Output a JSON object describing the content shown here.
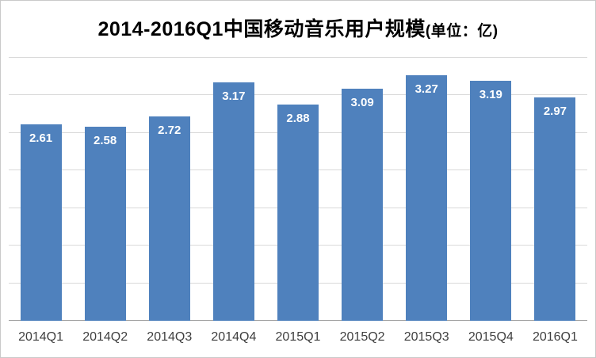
{
  "title": {
    "main": "2014-2016Q1中国移动音乐用户规模",
    "unit": "(单位：亿)"
  },
  "chart_data": {
    "type": "bar",
    "title": "2014-2016Q1中国移动音乐用户规模(单位：亿)",
    "categories": [
      "2014Q1",
      "2014Q2",
      "2014Q3",
      "2014Q4",
      "2015Q1",
      "2015Q2",
      "2015Q3",
      "2015Q4",
      "2016Q1"
    ],
    "values": [
      2.61,
      2.58,
      2.72,
      3.17,
      2.88,
      3.09,
      3.27,
      3.19,
      2.97
    ],
    "value_labels": [
      "2.61",
      "2.58",
      "2.72",
      "3.17",
      "2.88",
      "3.09",
      "3.27",
      "3.19",
      "2.97"
    ],
    "xlabel": "",
    "ylabel": "",
    "ylim": [
      0,
      3.5
    ],
    "grid_step": 0.5,
    "grid": true,
    "legend": "none",
    "bar_color": "#4F81BD",
    "label_color": "#FFFFFF",
    "grid_color": "#D9D9D9",
    "axis_color": "#A0A0A0"
  }
}
